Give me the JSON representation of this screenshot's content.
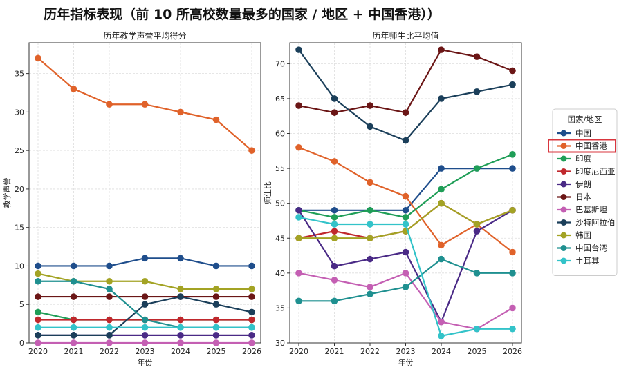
{
  "title": "历年指标表现（前 10 所高校数量最多的国家 / 地区 + 中国香港））",
  "legend_title": "国家/地区",
  "highlight": "中国香港",
  "chart_data": [
    {
      "type": "line",
      "title": "历年教学声誉平均得分",
      "xlabel": "年份",
      "ylabel": "教学声誉",
      "categories": [
        "2020",
        "2021",
        "2022",
        "2023",
        "2024",
        "2025",
        "2026"
      ],
      "ylim": [
        0,
        39
      ],
      "yticks": [
        0,
        5,
        10,
        15,
        20,
        25,
        30,
        35
      ],
      "series": [
        {
          "name": "中国",
          "values": [
            10,
            10,
            10,
            11,
            11,
            10,
            10
          ]
        },
        {
          "name": "中国香港",
          "values": [
            37,
            33,
            31,
            31,
            30,
            29,
            25
          ]
        },
        {
          "name": "印度",
          "values": [
            4,
            3,
            3,
            3,
            3,
            3,
            3
          ]
        },
        {
          "name": "印度尼西亚",
          "values": [
            3,
            3,
            3,
            3,
            3,
            3,
            3
          ]
        },
        {
          "name": "伊朗",
          "values": [
            1,
            1,
            1,
            1,
            1,
            1,
            1
          ]
        },
        {
          "name": "日本",
          "values": [
            6,
            6,
            6,
            6,
            6,
            6,
            6
          ]
        },
        {
          "name": "巴基斯坦",
          "values": [
            0,
            0,
            0,
            0,
            0,
            0,
            0
          ]
        },
        {
          "name": "沙特阿拉伯",
          "values": [
            1,
            1,
            1,
            5,
            6,
            5,
            4
          ]
        },
        {
          "name": "韩国",
          "values": [
            9,
            8,
            8,
            8,
            7,
            7,
            7
          ]
        },
        {
          "name": "中国台湾",
          "values": [
            8,
            8,
            7,
            3,
            2,
            2,
            2
          ]
        },
        {
          "name": "土耳其",
          "values": [
            2,
            2,
            2,
            2,
            2,
            2,
            2
          ]
        }
      ]
    },
    {
      "type": "line",
      "title": "历年师生比平均值",
      "xlabel": "年份",
      "ylabel": "师生比",
      "categories": [
        "2020",
        "2021",
        "2022",
        "2023",
        "2024",
        "2025",
        "2026"
      ],
      "ylim": [
        30,
        73
      ],
      "yticks": [
        30,
        35,
        40,
        45,
        50,
        55,
        60,
        65,
        70
      ],
      "series": [
        {
          "name": "中国",
          "values": [
            49,
            49,
            49,
            49,
            55,
            55,
            55
          ]
        },
        {
          "name": "中国香港",
          "values": [
            58,
            56,
            53,
            51,
            44,
            47,
            43
          ]
        },
        {
          "name": "印度",
          "values": [
            49,
            48,
            49,
            48,
            52,
            55,
            57
          ]
        },
        {
          "name": "印度尼西亚",
          "values": [
            45,
            46,
            45,
            46,
            50,
            47,
            49
          ]
        },
        {
          "name": "伊朗",
          "values": [
            49,
            41,
            42,
            43,
            33,
            46,
            49
          ]
        },
        {
          "name": "日本",
          "values": [
            64,
            63,
            64,
            63,
            72,
            71,
            69
          ]
        },
        {
          "name": "巴基斯坦",
          "values": [
            40,
            39,
            38,
            40,
            33,
            32,
            35
          ]
        },
        {
          "name": "沙特阿拉伯",
          "values": [
            72,
            65,
            61,
            59,
            65,
            66,
            67
          ]
        },
        {
          "name": "韩国",
          "values": [
            45,
            45,
            45,
            46,
            50,
            47,
            49
          ]
        },
        {
          "name": "中国台湾",
          "values": [
            36,
            36,
            37,
            38,
            42,
            40,
            40
          ]
        },
        {
          "name": "土耳其",
          "values": [
            48,
            47,
            47,
            47,
            31,
            32,
            32
          ]
        }
      ]
    }
  ],
  "colors": {
    "中国": "#1f4e8c",
    "中国香港": "#e0622a",
    "印度": "#1f9e57",
    "印度尼西亚": "#c0282d",
    "伊朗": "#4a2a86",
    "日本": "#6b1616",
    "巴基斯坦": "#c45fb3",
    "沙特阿拉伯": "#1b3f5a",
    "韩国": "#a3a324",
    "中国台湾": "#1f9090",
    "土耳其": "#33c3c9"
  }
}
